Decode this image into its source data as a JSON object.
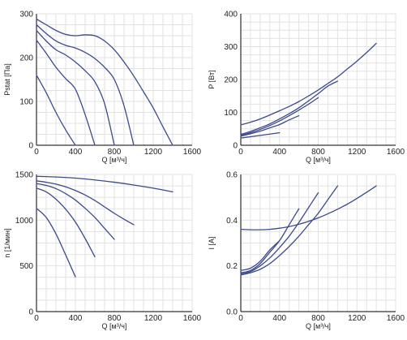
{
  "colors": {
    "curve": "#3d4a8a",
    "grid": "#e2e2e2",
    "axis": "#000000"
  },
  "chart_data": [
    {
      "id": "pstat",
      "type": "line",
      "xlabel": "Q [м³/ч]",
      "ylabel": "Pstat [Па]",
      "xlim": [
        0,
        1600
      ],
      "ylim": [
        0,
        300
      ],
      "xticks": [
        0,
        400,
        800,
        1200,
        1600
      ],
      "yticks": [
        0,
        100,
        200,
        300
      ],
      "xgrid_step": 100,
      "ygrid_step": 25,
      "series": [
        {
          "x": [
            0,
            100,
            200,
            300,
            400
          ],
          "y": [
            160,
            120,
            75,
            35,
            0
          ]
        },
        {
          "x": [
            0,
            100,
            200,
            300,
            400,
            500,
            600
          ],
          "y": [
            240,
            210,
            178,
            152,
            128,
            70,
            0
          ]
        },
        {
          "x": [
            0,
            100,
            200,
            300,
            400,
            500,
            600,
            700,
            800
          ],
          "y": [
            262,
            238,
            218,
            206,
            190,
            170,
            145,
            95,
            0
          ]
        },
        {
          "x": [
            0,
            100,
            200,
            300,
            400,
            500,
            600,
            700,
            800,
            900,
            1000
          ],
          "y": [
            275,
            255,
            238,
            228,
            222,
            212,
            198,
            178,
            150,
            90,
            0
          ]
        },
        {
          "x": [
            0,
            100,
            200,
            300,
            400,
            500,
            600,
            700,
            800,
            900,
            1000,
            1100,
            1200,
            1300,
            1400
          ],
          "y": [
            288,
            275,
            262,
            253,
            250,
            252,
            250,
            238,
            218,
            190,
            158,
            122,
            85,
            42,
            0
          ]
        }
      ]
    },
    {
      "id": "power",
      "type": "line",
      "xlabel": "Q [м³/ч]",
      "ylabel": "P [Вт]",
      "xlim": [
        0,
        1600
      ],
      "ylim": [
        0,
        400
      ],
      "xticks": [
        0,
        400,
        800,
        1200,
        1600
      ],
      "yticks": [
        0,
        100,
        200,
        300,
        400
      ],
      "xgrid_step": 100,
      "ygrid_step": 25,
      "series": [
        {
          "x": [
            0,
            100,
            200,
            300,
            400
          ],
          "y": [
            22,
            26,
            30,
            34,
            38
          ]
        },
        {
          "x": [
            0,
            100,
            200,
            300,
            400,
            500,
            600
          ],
          "y": [
            28,
            35,
            43,
            53,
            63,
            77,
            90
          ]
        },
        {
          "x": [
            0,
            100,
            200,
            300,
            400,
            500,
            600,
            700,
            800
          ],
          "y": [
            30,
            38,
            48,
            60,
            74,
            90,
            107,
            125,
            145
          ]
        },
        {
          "x": [
            0,
            100,
            200,
            300,
            400,
            500,
            600,
            700,
            800,
            900,
            1000
          ],
          "y": [
            33,
            42,
            53,
            65,
            80,
            96,
            114,
            135,
            157,
            180,
            195
          ]
        },
        {
          "x": [
            0,
            100,
            200,
            300,
            400,
            500,
            600,
            700,
            800,
            900,
            1000,
            1100,
            1200,
            1300,
            1400
          ],
          "y": [
            62,
            70,
            80,
            92,
            105,
            118,
            133,
            150,
            168,
            188,
            208,
            232,
            256,
            282,
            310
          ]
        }
      ]
    },
    {
      "id": "speed",
      "type": "line",
      "xlabel": "Q [м³/ч]",
      "ylabel": "n [1/мин]",
      "xlim": [
        0,
        1600
      ],
      "ylim": [
        0,
        1500
      ],
      "xticks": [
        0,
        400,
        800,
        1200,
        1600
      ],
      "yticks": [
        0,
        500,
        1000,
        1500
      ],
      "xgrid_step": 100,
      "ygrid_step": 125,
      "series": [
        {
          "x": [
            0,
            100,
            200,
            300,
            400
          ],
          "y": [
            1130,
            1030,
            850,
            620,
            380
          ]
        },
        {
          "x": [
            0,
            100,
            200,
            300,
            400,
            500,
            600
          ],
          "y": [
            1350,
            1310,
            1230,
            1120,
            980,
            800,
            600
          ]
        },
        {
          "x": [
            0,
            100,
            200,
            300,
            400,
            500,
            600,
            700,
            800
          ],
          "y": [
            1400,
            1380,
            1345,
            1290,
            1220,
            1130,
            1030,
            910,
            790
          ]
        },
        {
          "x": [
            0,
            100,
            200,
            300,
            400,
            500,
            600,
            700,
            800,
            900,
            1000
          ],
          "y": [
            1430,
            1415,
            1395,
            1365,
            1325,
            1275,
            1215,
            1145,
            1075,
            1010,
            950
          ]
        },
        {
          "x": [
            0,
            200,
            400,
            600,
            800,
            1000,
            1200,
            1400
          ],
          "y": [
            1480,
            1472,
            1460,
            1440,
            1415,
            1385,
            1350,
            1310
          ]
        }
      ]
    },
    {
      "id": "current",
      "type": "line",
      "xlabel": "Q [м³/ч]",
      "ylabel": "I [A]",
      "xlim": [
        0,
        1600
      ],
      "ylim": [
        0,
        0.6
      ],
      "xticks": [
        0,
        400,
        800,
        1200,
        1600
      ],
      "yticks": [
        0,
        0.2,
        0.4,
        0.6
      ],
      "xgrid_step": 100,
      "ygrid_step": 0.05,
      "series": [
        {
          "x": [
            0,
            100,
            200,
            300,
            400
          ],
          "y": [
            0.18,
            0.19,
            0.22,
            0.27,
            0.31
          ]
        },
        {
          "x": [
            0,
            100,
            200,
            300,
            400,
            500,
            600
          ],
          "y": [
            0.17,
            0.18,
            0.21,
            0.26,
            0.31,
            0.38,
            0.45
          ]
        },
        {
          "x": [
            0,
            100,
            200,
            300,
            400,
            500,
            600,
            700,
            800
          ],
          "y": [
            0.165,
            0.175,
            0.2,
            0.235,
            0.28,
            0.33,
            0.39,
            0.455,
            0.52
          ]
        },
        {
          "x": [
            0,
            100,
            200,
            300,
            400,
            500,
            600,
            700,
            800,
            900,
            1000
          ],
          "y": [
            0.16,
            0.17,
            0.185,
            0.21,
            0.245,
            0.285,
            0.33,
            0.38,
            0.43,
            0.49,
            0.55
          ]
        },
        {
          "x": [
            0,
            100,
            200,
            300,
            400,
            500,
            600,
            700,
            800,
            900,
            1000,
            1100,
            1200,
            1300,
            1400
          ],
          "y": [
            0.36,
            0.358,
            0.358,
            0.36,
            0.365,
            0.372,
            0.382,
            0.395,
            0.41,
            0.428,
            0.448,
            0.47,
            0.495,
            0.522,
            0.55
          ]
        }
      ]
    }
  ]
}
